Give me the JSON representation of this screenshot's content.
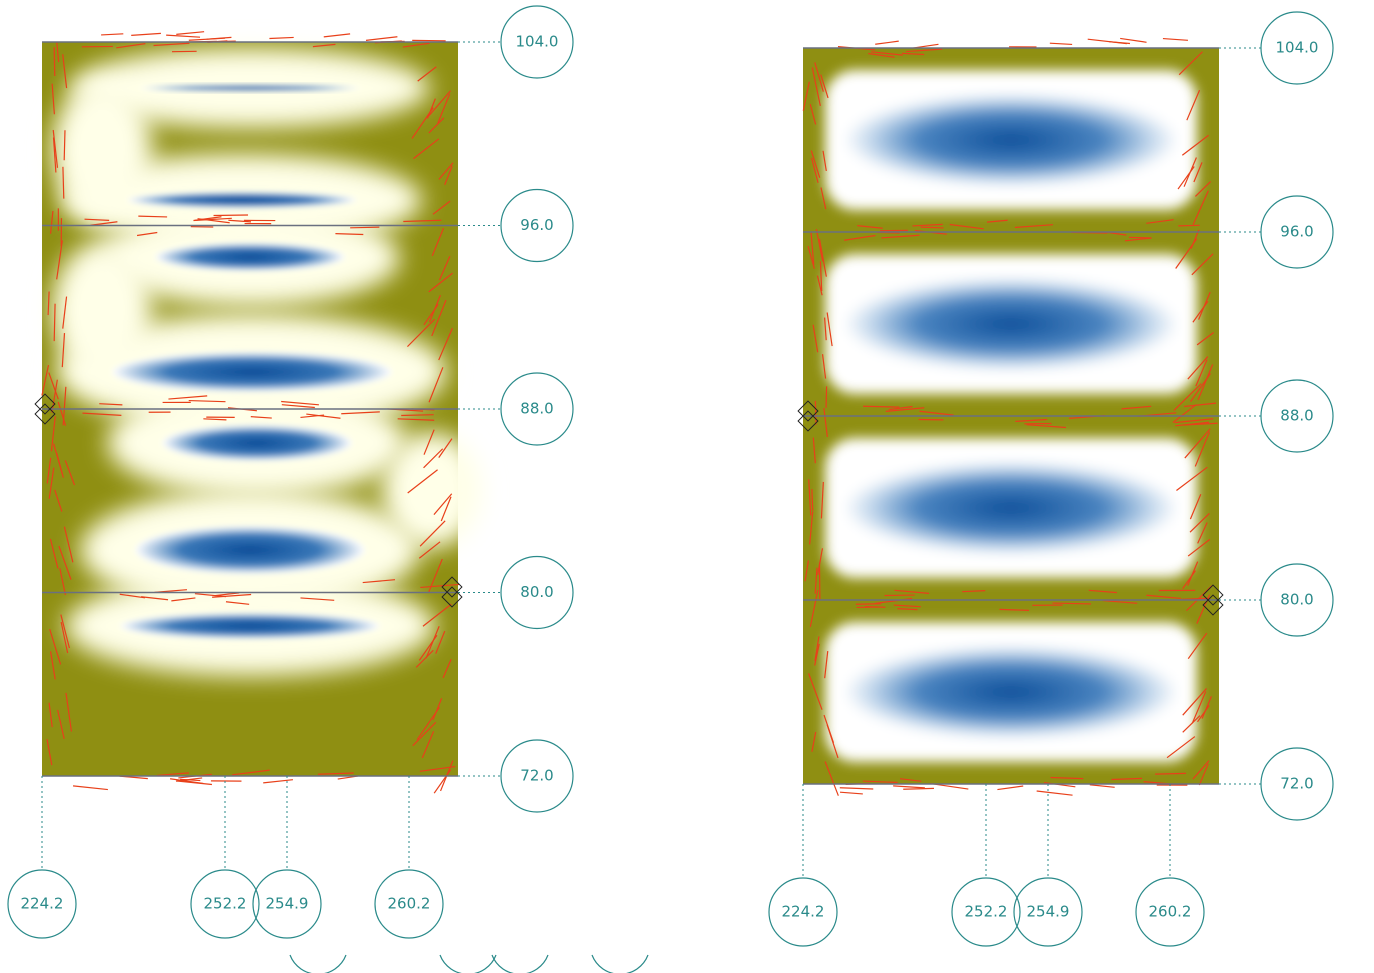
{
  "panels": [
    {
      "grid_rows": [
        "104.0",
        "96.0",
        "88.0",
        "80.0",
        "72.0"
      ],
      "grid_columns": [
        "224.2",
        "252.2",
        "254.9",
        "260.2"
      ]
    },
    {
      "grid_rows": [
        "104.0",
        "96.0",
        "88.0",
        "80.0",
        "72.0"
      ],
      "grid_columns": [
        "224.2",
        "252.2",
        "254.9",
        "260.2"
      ]
    }
  ]
}
